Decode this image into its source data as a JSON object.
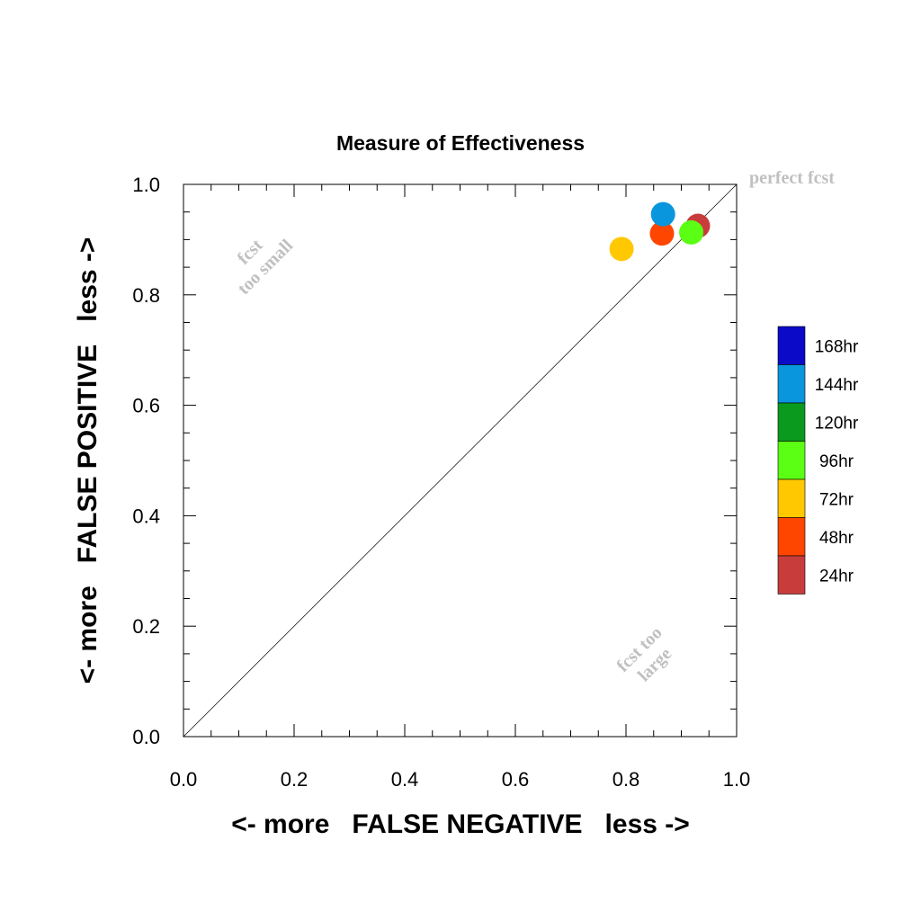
{
  "chart_data": {
    "type": "scatter",
    "title": "Measure of Effectiveness",
    "xlabel": "<- more   FALSE NEGATIVE   less ->",
    "ylabel": "<- more   FALSE POSITIVE   less ->",
    "xlim": [
      0.0,
      1.0
    ],
    "ylim": [
      0.0,
      1.0
    ],
    "x_ticks": [
      "0.0",
      "0.2",
      "0.4",
      "0.6",
      "0.8",
      "1.0"
    ],
    "y_ticks": [
      "0.0",
      "0.2",
      "0.4",
      "0.6",
      "0.8",
      "1.0"
    ],
    "grid": false,
    "diagonal_reference": true,
    "annotations": {
      "perfect": "perfect fcst",
      "small_line1": "fcst",
      "small_line2": "too small",
      "large_line1": "fcst too",
      "large_line2": "large"
    },
    "legend_placement": "right",
    "legend": [
      {
        "label": "168hr",
        "color": "#0a0ac8"
      },
      {
        "label": "144hr",
        "color": "#0a96dc"
      },
      {
        "label": "120hr",
        "color": "#0a9a1e"
      },
      {
        "label": "96hr",
        "color": "#5aff14"
      },
      {
        "label": "72hr",
        "color": "#ffc800"
      },
      {
        "label": "48hr",
        "color": "#ff4600"
      },
      {
        "label": "24hr",
        "color": "#c83c3c"
      }
    ],
    "points": [
      {
        "x": 0.93,
        "y": 0.925,
        "color": "#c83c3c"
      },
      {
        "x": 0.865,
        "y": 0.911,
        "color": "#ff4600"
      },
      {
        "x": 0.792,
        "y": 0.883,
        "color": "#ffc800"
      },
      {
        "x": 0.918,
        "y": 0.913,
        "color": "#5aff14"
      },
      {
        "x": 0.867,
        "y": 0.946,
        "color": "#0a96dc"
      }
    ]
  }
}
